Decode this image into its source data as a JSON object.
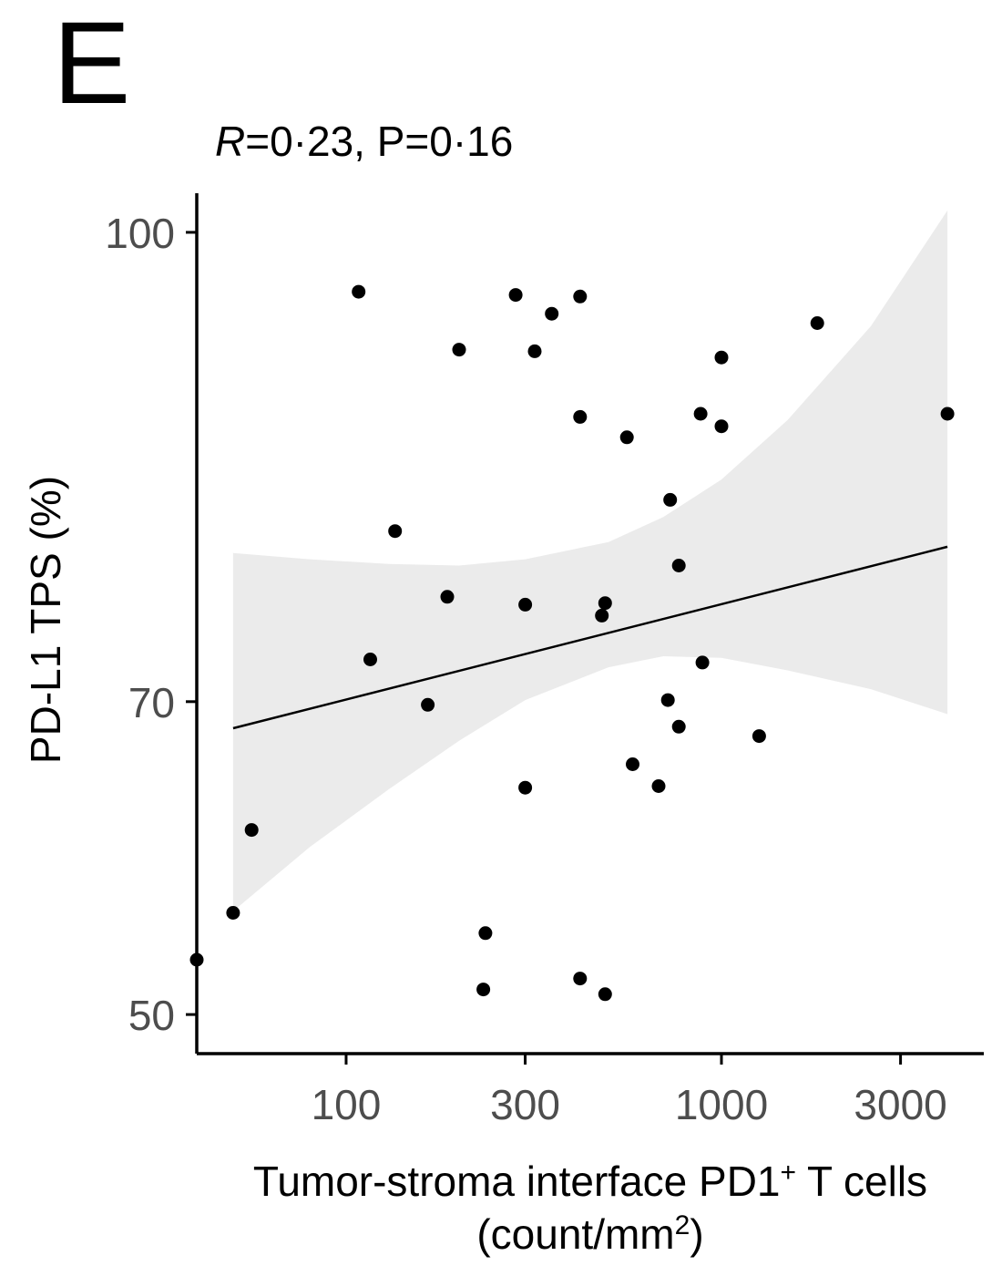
{
  "panel_label": "E",
  "stats": {
    "r_symbol": "R",
    "rest": "=0·23, P=0·16"
  },
  "chart_data": {
    "type": "scatter",
    "title": "",
    "xlabel_line1": "Tumor-stroma interface PD1",
    "xlabel_sup": "+",
    "xlabel_line1_end": " T cells",
    "xlabel_line2_pre": "(count/mm",
    "xlabel_line2_sup": "2",
    "xlabel_line2_post": ")",
    "ylabel": "PD-L1 TPS (%)",
    "x_scale": "log10",
    "xlim": [
      40,
      5000
    ],
    "ylim": [
      47.5,
      102.5
    ],
    "x_ticks": [
      {
        "value": 100,
        "label": "100"
      },
      {
        "value": 300,
        "label": "300"
      },
      {
        "value": 1000,
        "label": "1000"
      },
      {
        "value": 3000,
        "label": "3000"
      }
    ],
    "y_ticks": [
      {
        "value": 50,
        "label": "50"
      },
      {
        "value": 70,
        "label": "70"
      },
      {
        "value": 100,
        "label": "100"
      }
    ],
    "points": [
      {
        "x": 40,
        "y": 53.5
      },
      {
        "x": 50,
        "y": 56.5
      },
      {
        "x": 56,
        "y": 61.8
      },
      {
        "x": 108,
        "y": 96.2
      },
      {
        "x": 116,
        "y": 72.7
      },
      {
        "x": 135,
        "y": 80.9
      },
      {
        "x": 165,
        "y": 69.8
      },
      {
        "x": 186,
        "y": 76.7
      },
      {
        "x": 200,
        "y": 92.5
      },
      {
        "x": 235,
        "y": 55.2
      },
      {
        "x": 232,
        "y": 51.6
      },
      {
        "x": 283,
        "y": 96.0
      },
      {
        "x": 300,
        "y": 76.2
      },
      {
        "x": 300,
        "y": 64.5
      },
      {
        "x": 318,
        "y": 92.4
      },
      {
        "x": 353,
        "y": 94.8
      },
      {
        "x": 420,
        "y": 95.9
      },
      {
        "x": 420,
        "y": 88.2
      },
      {
        "x": 420,
        "y": 52.3
      },
      {
        "x": 480,
        "y": 75.5
      },
      {
        "x": 490,
        "y": 76.3
      },
      {
        "x": 490,
        "y": 51.3
      },
      {
        "x": 560,
        "y": 86.9
      },
      {
        "x": 580,
        "y": 66.0
      },
      {
        "x": 680,
        "y": 64.6
      },
      {
        "x": 720,
        "y": 70.1
      },
      {
        "x": 730,
        "y": 82.9
      },
      {
        "x": 770,
        "y": 78.7
      },
      {
        "x": 770,
        "y": 68.4
      },
      {
        "x": 880,
        "y": 88.4
      },
      {
        "x": 890,
        "y": 72.5
      },
      {
        "x": 1000,
        "y": 92.0
      },
      {
        "x": 1000,
        "y": 87.6
      },
      {
        "x": 1260,
        "y": 67.8
      },
      {
        "x": 1800,
        "y": 94.2
      },
      {
        "x": 4000,
        "y": 88.4
      }
    ],
    "fit_line": {
      "x": [
        50,
        4000
      ],
      "y": [
        68.3,
        79.9
      ]
    },
    "confidence_band": {
      "x": [
        50,
        80,
        130,
        200,
        300,
        500,
        700,
        1000,
        1500,
        2500,
        4000
      ],
      "upper": [
        79.5,
        79.1,
        78.8,
        78.7,
        79.1,
        80.2,
        81.8,
        84.2,
        88.0,
        94.0,
        101.4
      ],
      "lower": [
        56.6,
        60.7,
        64.4,
        67.5,
        70.1,
        72.2,
        72.9,
        72.8,
        72.0,
        70.8,
        69.2
      ]
    },
    "colors": {
      "point": "#000000",
      "band": "#ebebeb",
      "line": "#000000",
      "axis": "#000000",
      "tick_label": "#4d4d4d"
    }
  }
}
